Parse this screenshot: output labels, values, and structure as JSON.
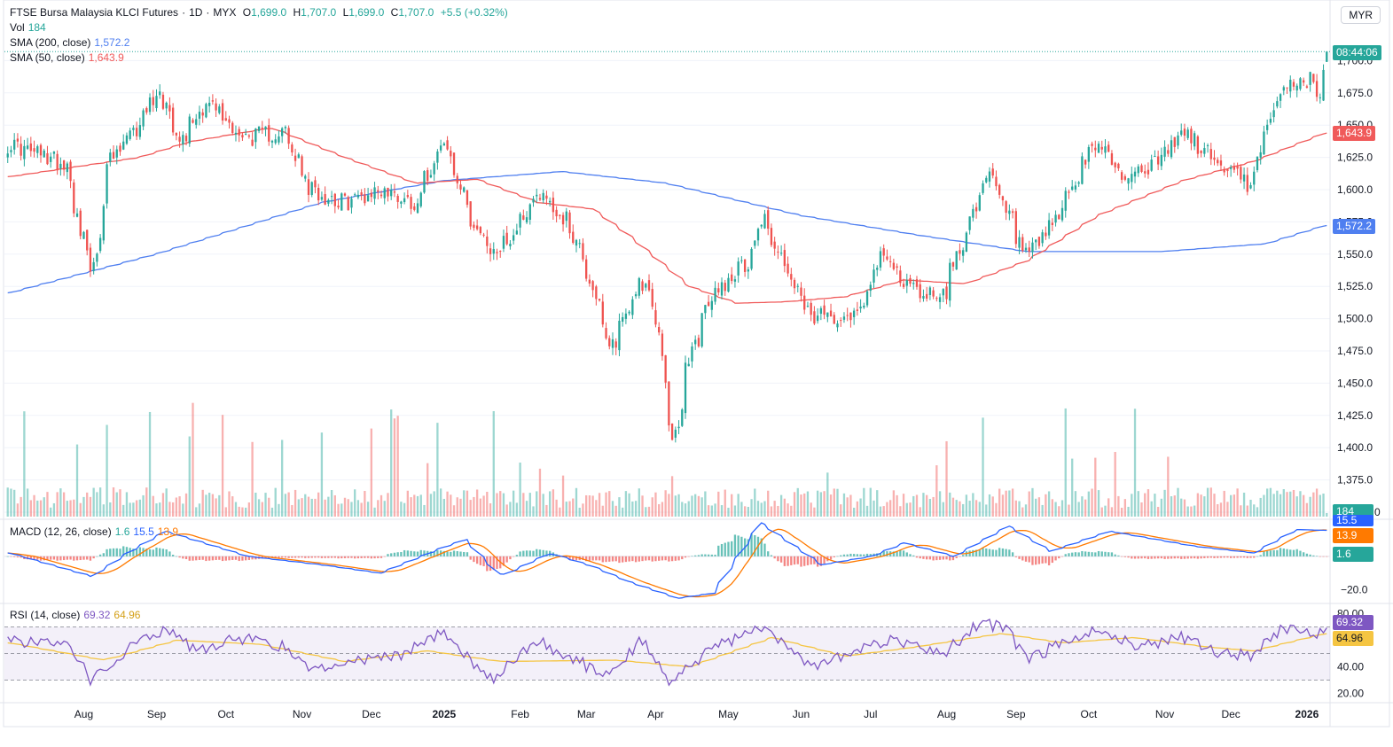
{
  "header": {
    "title": "FTSE Bursa Malaysia KLCI Futures",
    "interval": "1D",
    "exchange": "MYX",
    "o_label": "O",
    "open": "1,699.0",
    "h_label": "H",
    "high": "1,707.0",
    "l_label": "L",
    "low": "1,699.0",
    "c_label": "C",
    "close": "1,707.0",
    "change": "+5.5 (+0.32%)"
  },
  "legends": {
    "vol_label": "Vol",
    "vol_value": "184",
    "sma200_label": "SMA (200, close)",
    "sma200_value": "1,572.2",
    "sma50_label": "SMA (50, close)",
    "sma50_value": "1,643.9",
    "macd_label": "MACD (12, 26, close)",
    "macd_hist": "1.6",
    "macd_line": "15.5",
    "macd_signal": "13.9",
    "rsi_label": "RSI (14, close)",
    "rsi_value": "69.32",
    "rsi_ma": "64.96"
  },
  "currency": "MYR",
  "price_tags": {
    "countdown": "08:44:06",
    "sma50": "1,643.9",
    "sma200": "1,572.2",
    "vol": "184",
    "macd_line": "15.5",
    "macd_signal": "13.9",
    "macd_hist": "1.6",
    "rsi": "69.32",
    "rsi_ma": "64.96"
  },
  "colors": {
    "up": "#26a69a",
    "down": "#ef5350",
    "sma50": "#f05a5a",
    "sma200": "#4f7ff0",
    "macd": "#2962ff",
    "signal": "#ff7a00",
    "rsi": "#7e57c2",
    "rsi_ma": "#f5c542"
  },
  "chart_data": [
    {
      "type": "candlestick",
      "title": "FTSE Bursa Malaysia KLCI Futures",
      "y_ticks": [
        1700,
        1675,
        1650,
        1625,
        1600,
        1575,
        1550,
        1525,
        1500,
        1475,
        1450,
        1425,
        1400,
        1375,
        1350
      ],
      "ylim": [
        1350,
        1725
      ],
      "x_ticks": [
        "Aug",
        "Sep",
        "Oct",
        "Nov",
        "Dec",
        "2025",
        "Feb",
        "Mar",
        "Apr",
        "May",
        "Jun",
        "Jul",
        "Aug",
        "Sep",
        "Oct",
        "Nov",
        "Dec",
        "2026"
      ],
      "close_anchors": [
        {
          "date": "2024-07-01",
          "close": 1635
        },
        {
          "date": "2024-07-25",
          "close": 1620
        },
        {
          "date": "2024-08-05",
          "close": 1530
        },
        {
          "date": "2024-08-12",
          "close": 1620
        },
        {
          "date": "2024-08-25",
          "close": 1650
        },
        {
          "date": "2024-09-01",
          "close": 1680
        },
        {
          "date": "2024-09-12",
          "close": 1640
        },
        {
          "date": "2024-09-22",
          "close": 1670
        },
        {
          "date": "2024-10-08",
          "close": 1640
        },
        {
          "date": "2024-10-25",
          "close": 1645
        },
        {
          "date": "2024-11-05",
          "close": 1600
        },
        {
          "date": "2024-11-20",
          "close": 1590
        },
        {
          "date": "2024-12-05",
          "close": 1600
        },
        {
          "date": "2024-12-20",
          "close": 1590
        },
        {
          "date": "2024-12-31",
          "close": 1640
        },
        {
          "date": "2025-01-10",
          "close": 1590
        },
        {
          "date": "2025-01-20",
          "close": 1550
        },
        {
          "date": "2025-01-28",
          "close": 1560
        },
        {
          "date": "2025-02-10",
          "close": 1600
        },
        {
          "date": "2025-02-24",
          "close": 1570
        },
        {
          "date": "2025-03-05",
          "close": 1525
        },
        {
          "date": "2025-03-12",
          "close": 1475
        },
        {
          "date": "2025-03-25",
          "close": 1530
        },
        {
          "date": "2025-04-01",
          "close": 1500
        },
        {
          "date": "2025-04-08",
          "close": 1400
        },
        {
          "date": "2025-04-15",
          "close": 1470
        },
        {
          "date": "2025-04-25",
          "close": 1520
        },
        {
          "date": "2025-05-10",
          "close": 1545
        },
        {
          "date": "2025-05-16",
          "close": 1580
        },
        {
          "date": "2025-05-25",
          "close": 1540
        },
        {
          "date": "2025-06-05",
          "close": 1500
        },
        {
          "date": "2025-06-25",
          "close": 1505
        },
        {
          "date": "2025-07-05",
          "close": 1550
        },
        {
          "date": "2025-07-20",
          "close": 1520
        },
        {
          "date": "2025-08-01",
          "close": 1520
        },
        {
          "date": "2025-08-08",
          "close": 1560
        },
        {
          "date": "2025-08-20",
          "close": 1610
        },
        {
          "date": "2025-08-28",
          "close": 1580
        },
        {
          "date": "2025-09-05",
          "close": 1545
        },
        {
          "date": "2025-09-15",
          "close": 1570
        },
        {
          "date": "2025-09-25",
          "close": 1605
        },
        {
          "date": "2025-10-05",
          "close": 1640
        },
        {
          "date": "2025-10-15",
          "close": 1610
        },
        {
          "date": "2025-10-30",
          "close": 1620
        },
        {
          "date": "2025-11-10",
          "close": 1645
        },
        {
          "date": "2025-11-25",
          "close": 1620
        },
        {
          "date": "2025-12-08",
          "close": 1605
        },
        {
          "date": "2025-12-15",
          "close": 1640
        },
        {
          "date": "2025-12-22",
          "close": 1680
        },
        {
          "date": "2026-01-02",
          "close": 1685
        },
        {
          "date": "2026-01-07",
          "close": 1675
        },
        {
          "date": "2026-01-09",
          "close": 1707
        }
      ],
      "last_candle": {
        "open": 1699.0,
        "high": 1707.0,
        "low": 1699.0,
        "close": 1707.0
      },
      "sma50_anchors": [
        {
          "date": "2024-07-01",
          "value": 1610
        },
        {
          "date": "2024-08-25",
          "value": 1625
        },
        {
          "date": "2024-09-15",
          "value": 1637
        },
        {
          "date": "2024-10-20",
          "value": 1648
        },
        {
          "date": "2024-11-20",
          "value": 1625
        },
        {
          "date": "2024-12-20",
          "value": 1605
        },
        {
          "date": "2025-01-15",
          "value": 1608
        },
        {
          "date": "2025-02-10",
          "value": 1590
        },
        {
          "date": "2025-03-05",
          "value": 1585
        },
        {
          "date": "2025-03-20",
          "value": 1565
        },
        {
          "date": "2025-04-15",
          "value": 1525
        },
        {
          "date": "2025-05-05",
          "value": 1512
        },
        {
          "date": "2025-05-25",
          "value": 1513
        },
        {
          "date": "2025-06-20",
          "value": 1517
        },
        {
          "date": "2025-07-15",
          "value": 1530
        },
        {
          "date": "2025-08-10",
          "value": 1527
        },
        {
          "date": "2025-09-05",
          "value": 1545
        },
        {
          "date": "2025-10-05",
          "value": 1580
        },
        {
          "date": "2025-11-10",
          "value": 1607
        },
        {
          "date": "2025-12-10",
          "value": 1622
        },
        {
          "date": "2026-01-09",
          "value": 1643.9
        }
      ],
      "sma200_anchors": [
        {
          "date": "2024-07-01",
          "value": 1520
        },
        {
          "date": "2024-09-01",
          "value": 1550
        },
        {
          "date": "2024-11-10",
          "value": 1590
        },
        {
          "date": "2025-01-01",
          "value": 1607
        },
        {
          "date": "2025-02-20",
          "value": 1614
        },
        {
          "date": "2025-04-05",
          "value": 1605
        },
        {
          "date": "2025-06-01",
          "value": 1580
        },
        {
          "date": "2025-07-20",
          "value": 1565
        },
        {
          "date": "2025-09-05",
          "value": 1552
        },
        {
          "date": "2025-11-01",
          "value": 1552
        },
        {
          "date": "2025-12-15",
          "value": 1558
        },
        {
          "date": "2026-01-09",
          "value": 1572.2
        }
      ]
    },
    {
      "type": "bar",
      "title": "Vol",
      "last_value": 184,
      "y_ticks": [
        0
      ]
    },
    {
      "type": "line",
      "title": "MACD (12, 26, close)",
      "series": [
        {
          "name": "MACD",
          "last_value": 15.5
        },
        {
          "name": "Signal",
          "last_value": 13.9
        },
        {
          "name": "Histogram",
          "last_value": 1.6
        }
      ],
      "y_ticks": [
        -20.0
      ],
      "macd_anchors": [
        {
          "date": "2024-07-01",
          "value": 2
        },
        {
          "date": "2024-08-05",
          "value": -12
        },
        {
          "date": "2024-08-20",
          "value": 2
        },
        {
          "date": "2024-09-05",
          "value": 15
        },
        {
          "date": "2024-10-10",
          "value": 0
        },
        {
          "date": "2024-11-10",
          "value": -5
        },
        {
          "date": "2024-12-05",
          "value": -10
        },
        {
          "date": "2024-12-31",
          "value": 5
        },
        {
          "date": "2025-01-10",
          "value": 10
        },
        {
          "date": "2025-01-25",
          "value": -12
        },
        {
          "date": "2025-02-15",
          "value": 2
        },
        {
          "date": "2025-03-05",
          "value": -6
        },
        {
          "date": "2025-03-20",
          "value": -15
        },
        {
          "date": "2025-04-10",
          "value": -25
        },
        {
          "date": "2025-04-25",
          "value": -22
        },
        {
          "date": "2025-05-15",
          "value": 20
        },
        {
          "date": "2025-06-10",
          "value": -5
        },
        {
          "date": "2025-07-01",
          "value": 0
        },
        {
          "date": "2025-07-15",
          "value": 8
        },
        {
          "date": "2025-08-05",
          "value": 0
        },
        {
          "date": "2025-08-28",
          "value": 18
        },
        {
          "date": "2025-09-15",
          "value": 3
        },
        {
          "date": "2025-10-10",
          "value": 15
        },
        {
          "date": "2025-11-15",
          "value": 6
        },
        {
          "date": "2025-12-10",
          "value": 2
        },
        {
          "date": "2025-12-28",
          "value": 16
        },
        {
          "date": "2026-01-09",
          "value": 15.5
        }
      ]
    },
    {
      "type": "line",
      "title": "RSI (14, close)",
      "series": [
        {
          "name": "RSI",
          "last_value": 69.32
        },
        {
          "name": "RSI-based MA",
          "last_value": 64.96
        }
      ],
      "y_ticks": [
        80.0,
        40.0,
        20.0
      ],
      "band": [
        30,
        70
      ],
      "rsi_anchors": [
        {
          "date": "2024-07-01",
          "value": 60
        },
        {
          "date": "2024-07-25",
          "value": 55
        },
        {
          "date": "2024-08-05",
          "value": 30
        },
        {
          "date": "2024-08-25",
          "value": 60
        },
        {
          "date": "2024-09-05",
          "value": 68
        },
        {
          "date": "2024-09-20",
          "value": 52
        },
        {
          "date": "2024-10-05",
          "value": 62
        },
        {
          "date": "2024-10-25",
          "value": 55
        },
        {
          "date": "2024-11-05",
          "value": 38
        },
        {
          "date": "2024-11-25",
          "value": 45
        },
        {
          "date": "2024-12-15",
          "value": 50
        },
        {
          "date": "2024-12-31",
          "value": 68
        },
        {
          "date": "2025-01-15",
          "value": 40
        },
        {
          "date": "2025-01-22",
          "value": 32
        },
        {
          "date": "2025-02-10",
          "value": 60
        },
        {
          "date": "2025-02-25",
          "value": 45
        },
        {
          "date": "2025-03-12",
          "value": 33
        },
        {
          "date": "2025-03-25",
          "value": 60
        },
        {
          "date": "2025-04-08",
          "value": 28
        },
        {
          "date": "2025-04-25",
          "value": 55
        },
        {
          "date": "2025-05-15",
          "value": 70
        },
        {
          "date": "2025-06-05",
          "value": 40
        },
        {
          "date": "2025-06-25",
          "value": 52
        },
        {
          "date": "2025-07-10",
          "value": 60
        },
        {
          "date": "2025-08-01",
          "value": 50
        },
        {
          "date": "2025-08-15",
          "value": 72
        },
        {
          "date": "2025-08-28",
          "value": 70
        },
        {
          "date": "2025-09-05",
          "value": 45
        },
        {
          "date": "2025-09-25",
          "value": 62
        },
        {
          "date": "2025-10-05",
          "value": 70
        },
        {
          "date": "2025-10-20",
          "value": 55
        },
        {
          "date": "2025-11-10",
          "value": 62
        },
        {
          "date": "2025-11-25",
          "value": 50
        },
        {
          "date": "2025-12-10",
          "value": 48
        },
        {
          "date": "2025-12-22",
          "value": 70
        },
        {
          "date": "2026-01-05",
          "value": 62
        },
        {
          "date": "2026-01-09",
          "value": 69.32
        }
      ],
      "rsi_ma_anchors": [
        {
          "date": "2024-07-01",
          "value": 58
        },
        {
          "date": "2024-08-10",
          "value": 45
        },
        {
          "date": "2024-09-10",
          "value": 60
        },
        {
          "date": "2024-10-15",
          "value": 57
        },
        {
          "date": "2024-11-20",
          "value": 44
        },
        {
          "date": "2024-12-25",
          "value": 52
        },
        {
          "date": "2025-01-25",
          "value": 44
        },
        {
          "date": "2025-03-15",
          "value": 45
        },
        {
          "date": "2025-04-15",
          "value": 40
        },
        {
          "date": "2025-05-20",
          "value": 62
        },
        {
          "date": "2025-06-20",
          "value": 48
        },
        {
          "date": "2025-07-20",
          "value": 55
        },
        {
          "date": "2025-08-25",
          "value": 65
        },
        {
          "date": "2025-09-20",
          "value": 58
        },
        {
          "date": "2025-10-20",
          "value": 62
        },
        {
          "date": "2025-11-20",
          "value": 55
        },
        {
          "date": "2025-12-10",
          "value": 52
        },
        {
          "date": "2026-01-09",
          "value": 64.96
        }
      ]
    }
  ]
}
